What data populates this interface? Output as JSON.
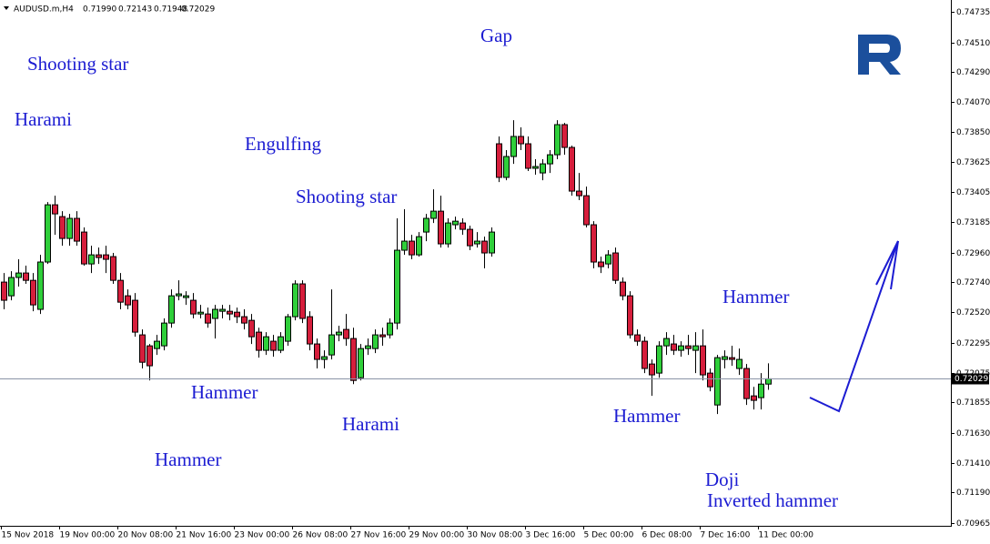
{
  "chart_data": {
    "type": "candlestick",
    "header": {
      "symbol": "AUDUSD.m,H4",
      "values": [
        "0.71990",
        "0.72143",
        "0.71948",
        "0.72029"
      ]
    },
    "up_color": "#2fcf3a",
    "down_color": "#d61e3c",
    "wick_color": "#000000",
    "grid": false,
    "ylim": [
      0.70945,
      0.74822
    ],
    "yticks": [
      0.74735,
      {
        "value": 0.7451,
        "label": "0.74510"
      },
      {
        "value": 0.7429,
        "label": "0.74290"
      },
      {
        "value": 0.7407,
        "label": "0.74070"
      },
      {
        "value": 0.7385,
        "label": "0.73850"
      },
      0.73625,
      0.73405,
      0.73185,
      {
        "value": 0.7296,
        "label": "0.72960"
      },
      {
        "value": 0.7274,
        "label": "0.72740"
      },
      {
        "value": 0.7252,
        "label": "0.72520"
      },
      0.72295,
      0.72075,
      0.71855,
      {
        "value": 0.7163,
        "label": "0.71630"
      },
      {
        "value": 0.7141,
        "label": "0.71410"
      },
      {
        "value": 0.7119,
        "label": "0.71190"
      },
      0.70965
    ],
    "last_price": 0.72029,
    "categories": [
      "15 Nov 2018",
      null,
      null,
      null,
      null,
      null,
      null,
      null,
      "19 Nov 00:00",
      null,
      null,
      null,
      null,
      null,
      null,
      null,
      "20 Nov 08:00",
      null,
      null,
      null,
      null,
      null,
      null,
      null,
      "21 Nov 16:00",
      null,
      null,
      null,
      null,
      null,
      null,
      null,
      "23 Nov 00:00",
      null,
      null,
      null,
      null,
      null,
      null,
      null,
      "26 Nov 08:00",
      null,
      null,
      null,
      null,
      null,
      null,
      null,
      "27 Nov 16:00",
      null,
      null,
      null,
      null,
      null,
      null,
      null,
      "29 Nov 00:00",
      null,
      null,
      null,
      null,
      null,
      null,
      null,
      "30 Nov 08:00",
      null,
      null,
      null,
      null,
      null,
      null,
      null,
      "3 Dec 16:00",
      null,
      null,
      null,
      null,
      null,
      null,
      null,
      "5 Dec 00:00",
      null,
      null,
      null,
      null,
      null,
      null,
      null,
      "6 Dec 08:00",
      null,
      null,
      null,
      null,
      null,
      null,
      null,
      "7 Dec 16:00",
      null,
      null,
      null,
      null,
      null,
      null,
      null,
      "11 Dec 00:00",
      null
    ],
    "open": [
      0.72742,
      0.72641,
      0.72776,
      0.72809,
      0.72755,
      0.72541,
      0.7289,
      0.73312,
      0.73225,
      0.73064,
      0.73212,
      0.73111,
      0.72876,
      0.72943,
      0.72943,
      0.7293,
      0.72755,
      0.72641,
      0.72608,
      0.72353,
      0.72272,
      0.72252,
      0.72272,
      0.7244,
      0.72641,
      0.72628,
      0.72608,
      0.72507,
      0.72507,
      0.72474,
      0.72527,
      0.72527,
      0.7252,
      0.72487,
      0.7246,
      0.72373,
      0.72239,
      0.72306,
      0.72239,
      0.72306,
      0.72487,
      0.72729,
      0.72487,
      0.72286,
      0.72172,
      0.72205,
      0.72353,
      0.72393,
      0.72326,
      0.72037,
      0.72252,
      0.72252,
      0.72353,
      0.72353,
      0.7244,
      0.72977,
      0.73044,
      0.72943,
      0.73111,
      0.73212,
      0.73265,
      0.73024,
      0.73165,
      0.73178,
      0.73131,
      0.73024,
      0.73044,
      0.72957,
      0.73762,
      0.73514,
      0.73668,
      0.73816,
      0.73762,
      0.73581,
      0.73547,
      0.73614,
      0.73681,
      0.73903,
      0.73735,
      0.73413,
      0.73379,
      0.73165,
      0.7289,
      0.72876,
      0.72957,
      0.72742,
      0.72641,
      0.72353,
      0.72306,
      0.72138,
      0.72071,
      0.72272,
      0.72286,
      0.72239,
      0.72272,
      0.72239,
      0.72272,
      0.72071,
      0.71836,
      0.72172,
      0.72185,
      0.72105,
      0.72105,
      0.71903,
      0.7189,
      0.7199
    ],
    "high": [
      0.72809,
      0.72822,
      0.7291,
      0.72863,
      0.72809,
      0.72943,
      0.73332,
      0.73379,
      0.73265,
      0.73245,
      0.73265,
      0.73145,
      0.7301,
      0.72997,
      0.7301,
      0.72957,
      0.72809,
      0.72688,
      0.72661,
      0.72393,
      0.72286,
      0.72353,
      0.72474,
      0.72688,
      0.72755,
      0.72675,
      0.72661,
      0.72574,
      0.72554,
      0.72574,
      0.72574,
      0.72574,
      0.72554,
      0.72541,
      0.72507,
      0.72406,
      0.72373,
      0.72353,
      0.72373,
      0.72507,
      0.72755,
      0.72755,
      0.72527,
      0.72326,
      0.72239,
      0.72688,
      0.7242,
      0.72507,
      0.72406,
      0.72286,
      0.72326,
      0.72393,
      0.72406,
      0.72474,
      0.73212,
      0.73279,
      0.73091,
      0.73111,
      0.73245,
      0.73426,
      0.73379,
      0.73212,
      0.73225,
      0.73212,
      0.73158,
      0.73111,
      0.73077,
      0.73145,
      0.73816,
      0.73715,
      0.73936,
      0.73883,
      0.73816,
      0.73648,
      0.73648,
      0.73715,
      0.73936,
      0.73916,
      0.73748,
      0.73547,
      0.73446,
      0.73191,
      0.7293,
      0.72977,
      0.72997,
      0.72776,
      0.72675,
      0.72393,
      0.72339,
      0.72172,
      0.72306,
      0.72373,
      0.72353,
      0.72306,
      0.72353,
      0.72373,
      0.72393,
      0.72105,
      0.72205,
      0.72239,
      0.72272,
      0.72252,
      0.72138,
      0.7197,
      0.72071,
      0.72143
    ],
    "low": [
      0.72541,
      0.72608,
      0.72709,
      0.72729,
      0.72527,
      0.72507,
      0.72876,
      0.73091,
      0.7301,
      0.7301,
      0.7301,
      0.72863,
      0.72809,
      0.72876,
      0.72809,
      0.72729,
      0.72541,
      0.72541,
      0.72339,
      0.72105,
      0.72017,
      0.72205,
      0.72239,
      0.72406,
      0.72608,
      0.72574,
      0.72474,
      0.72474,
      0.72406,
      0.72326,
      0.72474,
      0.7246,
      0.7244,
      0.72393,
      0.72286,
      0.72185,
      0.72205,
      0.72192,
      0.72219,
      0.72272,
      0.7246,
      0.7244,
      0.72239,
      0.72105,
      0.72105,
      0.72172,
      0.72306,
      0.72272,
      0.7199,
      0.72017,
      0.72205,
      0.72219,
      0.72272,
      0.72326,
      0.72393,
      0.72943,
      0.7291,
      0.7293,
      0.73044,
      0.73178,
      0.72997,
      0.72997,
      0.73131,
      0.73091,
      0.72977,
      0.72997,
      0.72843,
      0.7293,
      0.7348,
      0.73493,
      0.73614,
      0.73715,
      0.73561,
      0.73534,
      0.73493,
      0.73547,
      0.73648,
      0.73681,
      0.73379,
      0.73346,
      0.73145,
      0.72843,
      0.72809,
      0.72843,
      0.72729,
      0.72608,
      0.72326,
      0.72272,
      0.72071,
      0.71903,
      0.72037,
      0.72205,
      0.72205,
      0.72192,
      0.72205,
      0.72071,
      0.72017,
      0.71937,
      0.71769,
      0.72105,
      0.72125,
      0.72058,
      0.71836,
      0.71803,
      0.71803,
      0.71948
    ],
    "close": [
      0.72608,
      0.72776,
      0.72809,
      0.72755,
      0.72574,
      0.7289,
      0.73312,
      0.73245,
      0.73064,
      0.73212,
      0.73044,
      0.72876,
      0.72943,
      0.72923,
      0.7291,
      0.72755,
      0.72594,
      0.72574,
      0.72373,
      0.72151,
      0.72125,
      0.72306,
      0.7244,
      0.72641,
      0.72655,
      0.72641,
      0.72507,
      0.7252,
      0.7244,
      0.72541,
      0.72541,
      0.72507,
      0.72487,
      0.7244,
      0.72339,
      0.72239,
      0.72339,
      0.72239,
      0.72339,
      0.72487,
      0.72729,
      0.72474,
      0.72286,
      0.72172,
      0.72192,
      0.72353,
      0.72373,
      0.72326,
      0.72017,
      0.72252,
      0.72272,
      0.72353,
      0.72339,
      0.7244,
      0.72977,
      0.73044,
      0.72943,
      0.73077,
      0.73212,
      0.73265,
      0.73024,
      0.73178,
      0.73191,
      0.73131,
      0.7301,
      0.73044,
      0.72957,
      0.73111,
      0.73514,
      0.73668,
      0.73816,
      0.73762,
      0.73581,
      0.73594,
      0.73614,
      0.73681,
      0.73903,
      0.73735,
      0.73413,
      0.73379,
      0.73165,
      0.7289,
      0.72856,
      0.72943,
      0.72755,
      0.72641,
      0.72353,
      0.72306,
      0.72105,
      0.72058,
      0.72272,
      0.72326,
      0.72239,
      0.72272,
      0.72252,
      0.72272,
      0.72058,
      0.7197,
      0.72185,
      0.72192,
      0.72172,
      0.72172,
      0.71883,
      0.7187,
      0.7199,
      0.72029
    ],
    "annotations": [
      "Shooting star",
      "Harami",
      "Engulfing",
      "Gap",
      "Shooting star",
      "Hammer",
      "Harami",
      "Hammer",
      "Hammer",
      "Hammer",
      "Doji",
      "Inverted hammer"
    ]
  }
}
